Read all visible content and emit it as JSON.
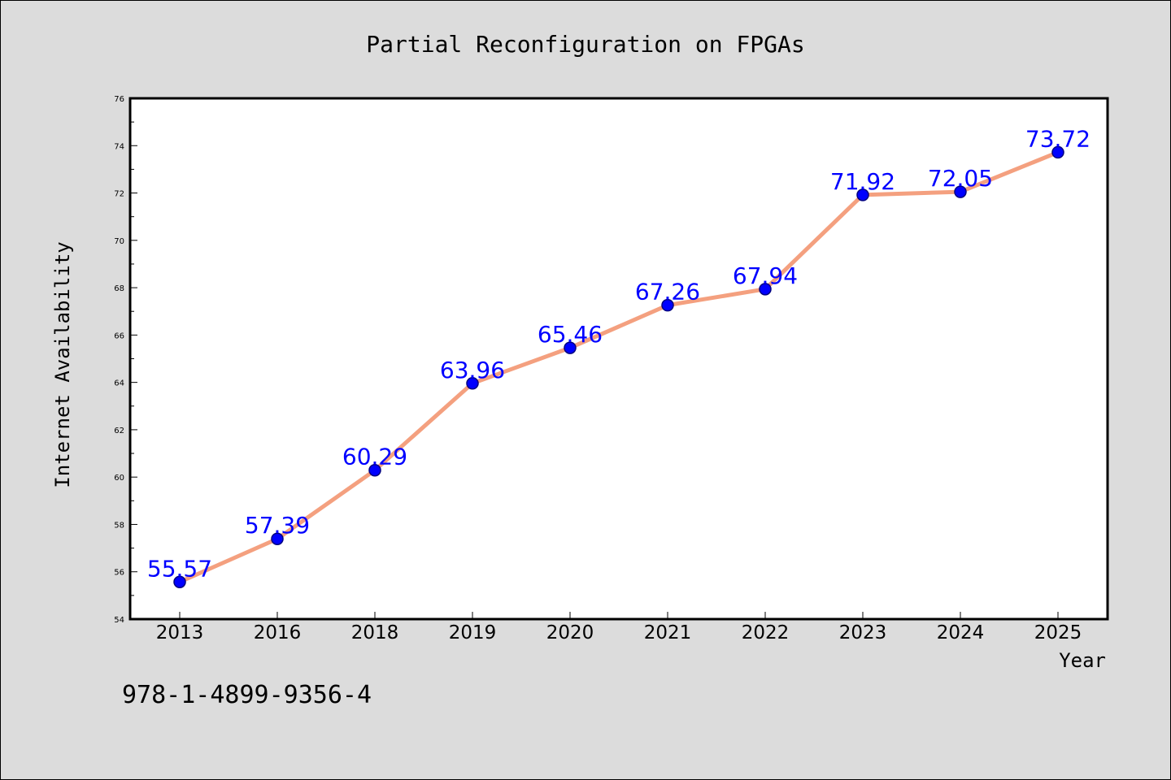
{
  "colors": {
    "background": "#dcdcdc",
    "plot_background": "#ffffff",
    "line": "#f4a07f",
    "marker_fill": "#0000ff",
    "marker_edge": "#000080",
    "data_label": "#0000ff",
    "text": "#000000"
  },
  "footer": {
    "isbn": "978-1-4899-9356-4"
  },
  "chart_data": {
    "type": "line",
    "title": "Partial Reconfiguration on FPGAs",
    "xlabel": "Year",
    "ylabel": "Internet Availability",
    "categories": [
      "2013",
      "2016",
      "2018",
      "2019",
      "2020",
      "2021",
      "2022",
      "2023",
      "2024",
      "2025"
    ],
    "series": [
      {
        "values": [
          55.57,
          57.39,
          60.29,
          63.96,
          65.46,
          67.26,
          67.94,
          71.92,
          72.05,
          73.72
        ]
      }
    ],
    "data_labels": [
      "55.57",
      "57.39",
      "60.29",
      "63.96",
      "65.46",
      "67.26",
      "67.94",
      "71.92",
      "72.05",
      "73.72"
    ],
    "ylim": [
      54,
      76
    ],
    "yticks": [
      54,
      56,
      58,
      60,
      62,
      64,
      66,
      68,
      70,
      72,
      74,
      76
    ],
    "grid": false,
    "legend": "none"
  }
}
